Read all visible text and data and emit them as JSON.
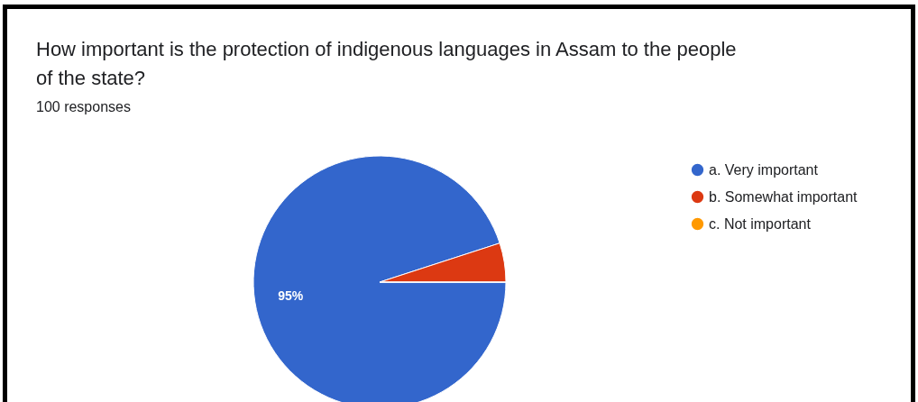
{
  "chart_data": {
    "type": "pie",
    "title": "How important is the protection of indigenous languages in Assam to the people of the state?",
    "subtitle": "100 responses",
    "categories": [
      "a. Very important",
      "b. Somewhat important",
      "c. Not important"
    ],
    "values": [
      95,
      5,
      0
    ],
    "colors": [
      "#3366cc",
      "#dc3912",
      "#ff9900"
    ],
    "value_labels": [
      "95%",
      null,
      null
    ],
    "legend": "right"
  }
}
